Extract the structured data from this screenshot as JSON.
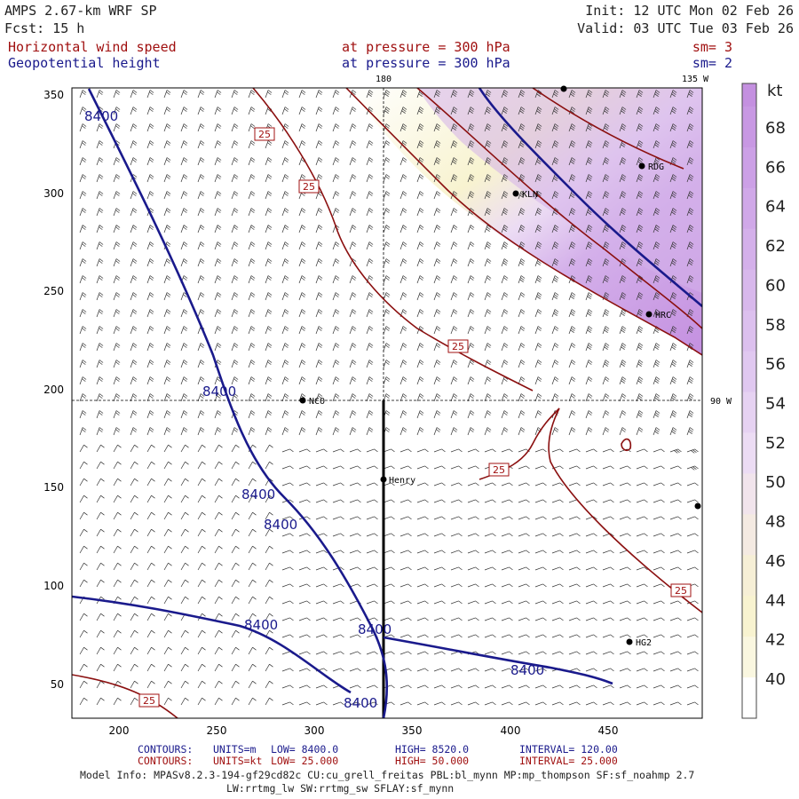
{
  "header": {
    "model": "AMPS 2.67-km WRF SP",
    "fcst": "Fcst:   15 h",
    "init": "Init: 12 UTC Mon 02 Feb 26",
    "valid": "Valid: 03 UTC Tue 03 Feb 26",
    "field1": {
      "name": "Horizontal wind speed",
      "level": "at pressure =  300 hPa",
      "sm": "sm= 3"
    },
    "field2": {
      "name": "Geopotential height",
      "level": "at pressure =  300 hPa",
      "sm": "sm= 2"
    }
  },
  "map": {
    "meridian_labels": [
      "180",
      "135 W",
      "90 W"
    ],
    "contour_labels": [
      "8400",
      "8400",
      "8400",
      "8400",
      "8400",
      "8400",
      "8400",
      "8400"
    ],
    "wind_labels": [
      "25",
      "25",
      "25",
      "25",
      "25",
      "25"
    ],
    "stations": [
      "NCO",
      "KLN",
      "RDG",
      "HRC",
      "Henry",
      "HG2"
    ]
  },
  "axes": {
    "x_ticks": [
      "200",
      "250",
      "300",
      "350",
      "400",
      "450"
    ],
    "y_ticks": [
      "350",
      "300",
      "250",
      "200",
      "150",
      "100",
      "50"
    ]
  },
  "colorbar": {
    "unit": "kt",
    "ticks": [
      "68",
      "66",
      "64",
      "62",
      "60",
      "58",
      "56",
      "54",
      "52",
      "50",
      "48",
      "46",
      "44",
      "42",
      "40"
    ],
    "colors": [
      "#c490e0",
      "#c898e3",
      "#cca0e6",
      "#d0a8e8",
      "#d4b0ea",
      "#d8b8ec",
      "#dcc0ee",
      "#e0c8f0",
      "#e6d2f2",
      "#ecdcf4",
      "#f1e4ec",
      "#f4eae2",
      "#f6efd6",
      "#f8f3d0",
      "#faf7e0",
      "#ffffff"
    ]
  },
  "footer": {
    "line1": {
      "label": "CONTOURS:",
      "units": "UNITS=m",
      "low": "LOW=  8400.0",
      "high": "HIGH=  8520.0",
      "interval": "INTERVAL=    120.00"
    },
    "line2": {
      "label": "CONTOURS:",
      "units": "UNITS=kt",
      "low": "LOW=  25.000",
      "high": "HIGH=  50.000",
      "interval": "INTERVAL=    25.000"
    },
    "model_info": "Model Info: MPASv8.2.3-194-gf29cd82c CU:cu_grell_freitas PBL:bl_mynn MP:mp_thompson SF:sf_noahmp 2.7",
    "model_info2": "LW:rrtmg_lw SW:rrtmg_sw SFLAY:sf_mynn"
  }
}
